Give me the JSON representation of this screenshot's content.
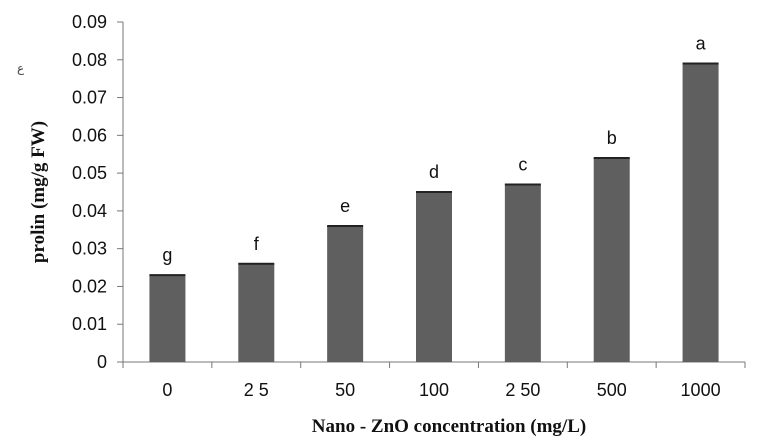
{
  "chart_data": {
    "type": "bar",
    "title": "",
    "xlabel": "Nano - ZnO concentration (mg/L)",
    "ylabel": "prolin (mg/g FW)",
    "categories": [
      "0",
      "25",
      "50",
      "100",
      "250",
      "500",
      "1000"
    ],
    "category_tick_labels": [
      "0",
      "2 5",
      "50",
      "100",
      "2 50",
      "500",
      "1000"
    ],
    "values": [
      0.023,
      0.026,
      0.036,
      0.045,
      0.047,
      0.054,
      0.079
    ],
    "bar_labels": [
      "g",
      "f",
      "e",
      "d",
      "c",
      "b",
      "a"
    ],
    "ylim": [
      0,
      0.09
    ],
    "yticks": [
      "0",
      "0.01",
      "0.02",
      "0.03",
      "0.04",
      "0.05",
      "0.06",
      "0.07",
      "0.08",
      "0.09"
    ],
    "grid": false,
    "legend": "none",
    "bar_color": "#5f5f5f",
    "stray_mark": "ع"
  }
}
